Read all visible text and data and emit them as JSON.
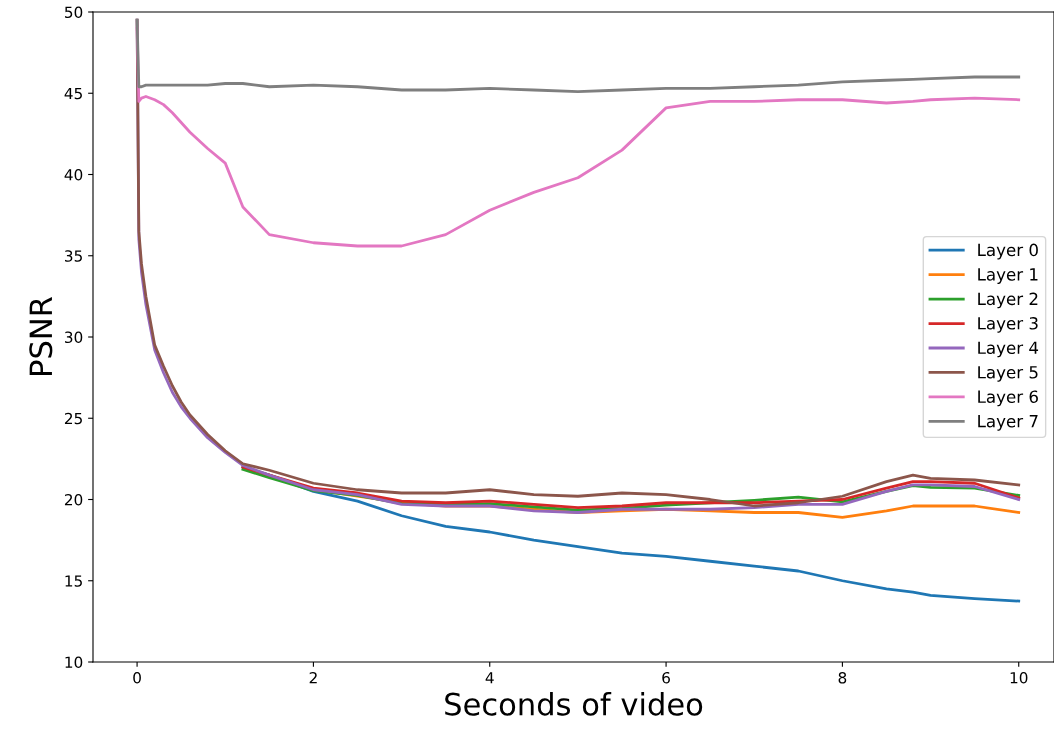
{
  "chart_data": {
    "type": "line",
    "xlabel": "Seconds of video",
    "ylabel": "PSNR",
    "x": [
      0,
      0.02,
      0.05,
      0.1,
      0.2,
      0.3,
      0.4,
      0.5,
      0.6,
      0.8,
      1.0,
      1.2,
      1.5,
      2.0,
      2.5,
      3.0,
      3.5,
      4.0,
      4.5,
      5.0,
      5.5,
      6.0,
      6.5,
      7.0,
      7.5,
      8.0,
      8.5,
      8.8,
      9.0,
      9.5,
      10.0
    ],
    "xlim": [
      -0.5,
      10.4
    ],
    "xticks": [
      0,
      2,
      4,
      6,
      8,
      10
    ],
    "ylim": [
      10,
      50
    ],
    "yticks": [
      10,
      15,
      20,
      25,
      30,
      35,
      40,
      45,
      50
    ],
    "grid": false,
    "legend": "right",
    "line_style": "solid",
    "marker": "none",
    "series": [
      {
        "name": "Layer 0",
        "color": "#1f77b4",
        "values": [
          null,
          null,
          null,
          null,
          null,
          null,
          null,
          null,
          null,
          null,
          null,
          22.0,
          21.5,
          20.5,
          19.9,
          19.0,
          18.35,
          18.0,
          17.5,
          17.1,
          16.7,
          16.5,
          16.2,
          15.9,
          15.6,
          15.0,
          14.5,
          14.3,
          14.1,
          13.9,
          13.75
        ]
      },
      {
        "name": "Layer 1",
        "color": "#ff7f0e",
        "values": [
          null,
          null,
          null,
          null,
          null,
          null,
          null,
          null,
          null,
          null,
          null,
          null,
          21.5,
          20.6,
          20.2,
          19.8,
          19.6,
          19.6,
          19.4,
          19.2,
          19.3,
          19.4,
          19.3,
          19.2,
          19.2,
          18.9,
          19.3,
          19.6,
          19.6,
          19.6,
          19.2
        ]
      },
      {
        "name": "Layer 2",
        "color": "#2ca02c",
        "values": [
          null,
          null,
          null,
          null,
          null,
          null,
          null,
          null,
          null,
          null,
          null,
          21.85,
          21.35,
          20.55,
          20.25,
          19.75,
          19.7,
          19.75,
          19.55,
          19.35,
          19.45,
          19.65,
          19.8,
          19.95,
          20.15,
          19.85,
          20.5,
          20.85,
          20.75,
          20.7,
          20.25
        ]
      },
      {
        "name": "Layer 3",
        "color": "#d62728",
        "values": [
          null,
          null,
          null,
          null,
          null,
          null,
          null,
          null,
          null,
          null,
          null,
          22.0,
          21.5,
          20.7,
          20.4,
          19.9,
          19.8,
          19.9,
          19.7,
          19.5,
          19.6,
          19.8,
          19.8,
          19.8,
          19.9,
          20.0,
          20.7,
          21.1,
          21.1,
          21.0,
          20.1
        ]
      },
      {
        "name": "Layer 4",
        "color": "#9467bd",
        "values": [
          49.5,
          36,
          34,
          32,
          29.2,
          27.8,
          26.6,
          25.7,
          25.0,
          23.8,
          22.9,
          22.1,
          21.5,
          20.6,
          20.3,
          19.7,
          19.6,
          19.6,
          19.3,
          19.2,
          19.4,
          19.4,
          19.4,
          19.5,
          19.7,
          19.7,
          20.5,
          20.9,
          20.9,
          20.8,
          20.0
        ]
      },
      {
        "name": "Layer 5",
        "color": "#8c564b",
        "values": [
          49.5,
          36.5,
          34.5,
          32.5,
          29.5,
          28.2,
          27.0,
          26.0,
          25.2,
          24.0,
          23.0,
          22.2,
          21.8,
          21.0,
          20.6,
          20.4,
          20.4,
          20.6,
          20.3,
          20.2,
          20.4,
          20.3,
          20.0,
          19.6,
          19.8,
          20.2,
          21.1,
          21.5,
          21.3,
          21.2,
          20.9
        ]
      },
      {
        "name": "Layer 6",
        "color": "#e377c2",
        "values": [
          49,
          44.5,
          44.7,
          44.8,
          44.6,
          44.3,
          43.8,
          43.2,
          42.6,
          41.6,
          40.7,
          38.0,
          36.3,
          35.8,
          35.6,
          35.6,
          36.3,
          37.8,
          38.9,
          39.8,
          41.5,
          44.1,
          44.5,
          44.5,
          44.6,
          44.6,
          44.4,
          44.5,
          44.6,
          44.7,
          44.6
        ]
      },
      {
        "name": "Layer 7",
        "color": "#7f7f7f",
        "values": [
          49.5,
          45.4,
          45.4,
          45.5,
          45.5,
          45.5,
          45.5,
          45.5,
          45.5,
          45.5,
          45.6,
          45.6,
          45.4,
          45.5,
          45.4,
          45.2,
          45.2,
          45.3,
          45.2,
          45.1,
          45.2,
          45.3,
          45.3,
          45.4,
          45.5,
          45.7,
          45.8,
          45.85,
          45.9,
          46.0,
          46.0
        ]
      }
    ]
  }
}
